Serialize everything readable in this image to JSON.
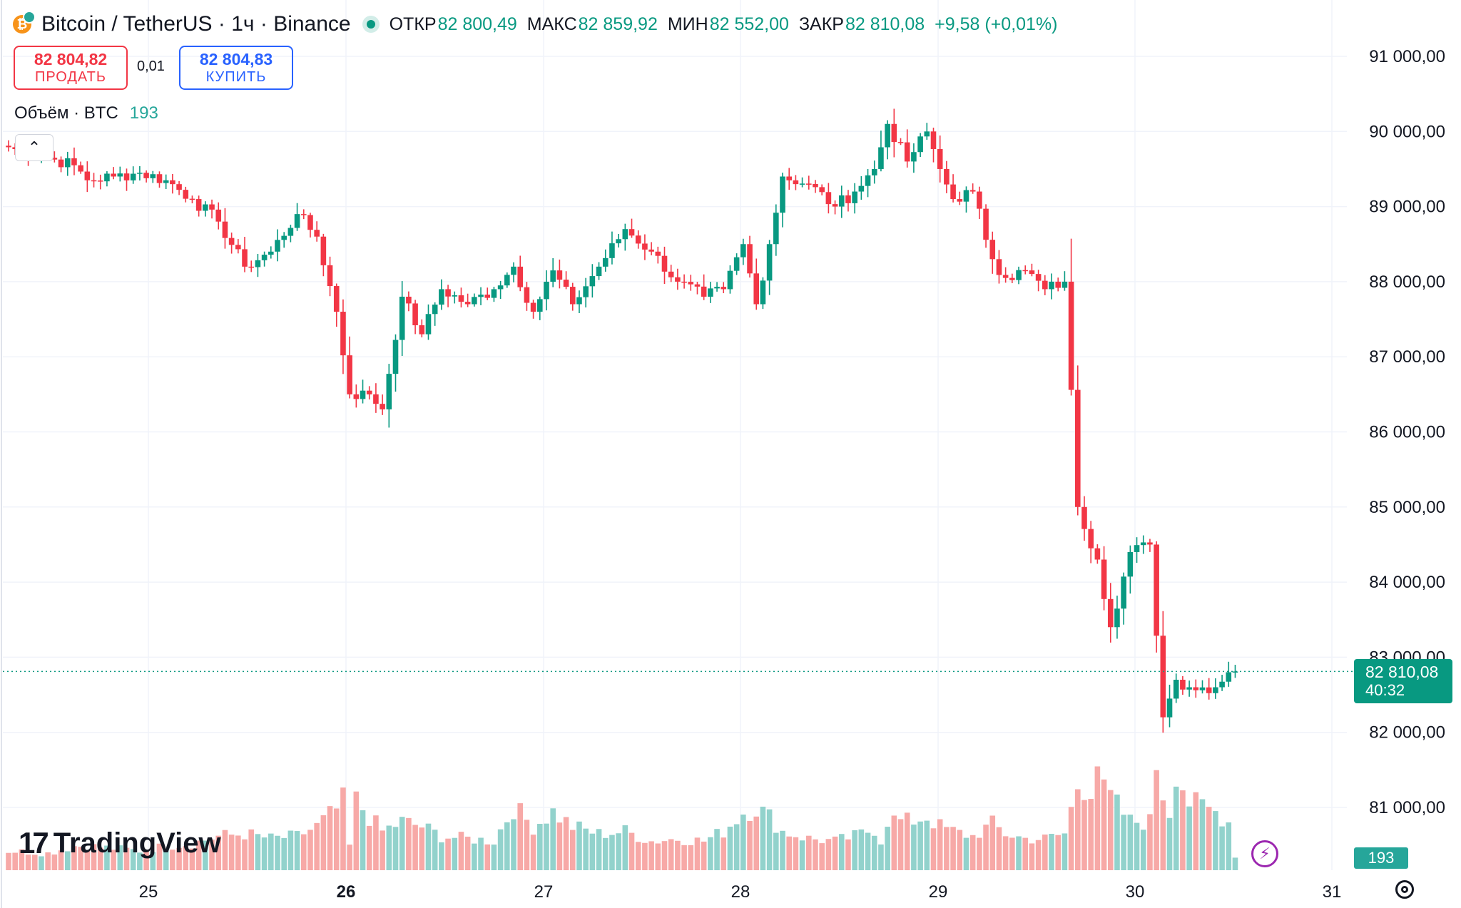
{
  "header": {
    "title": "Bitcoin / TetherUS · 1ч · Binance",
    "open_label": "ОТКР",
    "open_value": "82 800,49",
    "high_label": "МАКС",
    "high_value": "82 859,92",
    "low_label": "МИН",
    "low_value": "82 552,00",
    "close_label": "ЗАКР",
    "close_value": "82 810,08",
    "change": "+9,58 (+0,01%)"
  },
  "trade": {
    "sell_price": "82 804,82",
    "sell_label": "ПРОДАТЬ",
    "spread": "0,01",
    "buy_price": "82 804,83",
    "buy_label": "КУПИТЬ"
  },
  "volume_legend": {
    "label": "Объём · BTC",
    "value": "193"
  },
  "price_tag": {
    "price": "82 810,08",
    "countdown": "40:32"
  },
  "volume_tag": "193",
  "brand": "TradingView",
  "colors": {
    "up": "#089981",
    "down": "#f23645",
    "up_volume": "#92d2cc",
    "down_volume": "#f7a9a7",
    "grid": "#f0f3fa"
  },
  "chart_data": {
    "type": "candlestick",
    "ylim": [
      80300,
      91500
    ],
    "y_ticks": [
      {
        "value": 81000,
        "label": "81 000,00"
      },
      {
        "value": 82000,
        "label": "82 000,00"
      },
      {
        "value": 83000,
        "label": "83 000,00"
      },
      {
        "value": 84000,
        "label": "84 000,00"
      },
      {
        "value": 85000,
        "label": "85 000,00"
      },
      {
        "value": 86000,
        "label": "86 000,00"
      },
      {
        "value": 87000,
        "label": "87 000,00"
      },
      {
        "value": 88000,
        "label": "88 000,00"
      },
      {
        "value": 89000,
        "label": "89 000,00"
      },
      {
        "value": 90000,
        "label": "90 000,00"
      },
      {
        "value": 91000,
        "label": "91 000,00"
      }
    ],
    "x_ticks": [
      {
        "label": "25",
        "bold": false
      },
      {
        "label": "26",
        "bold": true
      },
      {
        "label": "27",
        "bold": false
      },
      {
        "label": "28",
        "bold": false
      },
      {
        "label": "29",
        "bold": false
      },
      {
        "label": "30",
        "bold": false
      },
      {
        "label": "31",
        "bold": false
      }
    ],
    "last_price": 82810.08,
    "anchors": [
      [
        0,
        89790,
        0.8
      ],
      [
        6,
        89650,
        0.7
      ],
      [
        10,
        89550,
        1.0
      ],
      [
        12,
        89350,
        1.0
      ],
      [
        16,
        89400,
        0.9
      ],
      [
        20,
        89450,
        0.8
      ],
      [
        24,
        89350,
        1.0
      ],
      [
        28,
        89100,
        1.1
      ],
      [
        32,
        88800,
        1.4
      ],
      [
        36,
        88200,
        1.5
      ],
      [
        40,
        88400,
        1.3
      ],
      [
        44,
        88900,
        1.4
      ],
      [
        47,
        88600,
        1.8
      ],
      [
        50,
        87600,
        2.5
      ],
      [
        52,
        86500,
        3.2
      ],
      [
        55,
        86500,
        2.2
      ],
      [
        57,
        86300,
        1.6
      ],
      [
        60,
        87800,
        2.0
      ],
      [
        63,
        87300,
        1.8
      ],
      [
        66,
        87900,
        1.4
      ],
      [
        70,
        87700,
        1.3
      ],
      [
        74,
        87900,
        1.2
      ],
      [
        77,
        88200,
        2.6
      ],
      [
        80,
        87600,
        1.8
      ],
      [
        83,
        88150,
        2.4
      ],
      [
        86,
        87700,
        1.8
      ],
      [
        90,
        88200,
        1.5
      ],
      [
        94,
        88700,
        1.6
      ],
      [
        98,
        88400,
        1.2
      ],
      [
        102,
        88000,
        1.3
      ],
      [
        106,
        87800,
        1.2
      ],
      [
        109,
        87900,
        1.6
      ],
      [
        112,
        88500,
        2.4
      ],
      [
        114,
        87700,
        2.6
      ],
      [
        116,
        88500,
        2.2
      ],
      [
        118,
        89400,
        1.6
      ],
      [
        122,
        89300,
        1.3
      ],
      [
        126,
        89000,
        1.2
      ],
      [
        129,
        89200,
        1.4
      ],
      [
        132,
        89500,
        1.7
      ],
      [
        134,
        90100,
        2.1
      ],
      [
        137,
        89600,
        2.0
      ],
      [
        140,
        90000,
        2.2
      ],
      [
        142,
        89500,
        1.8
      ],
      [
        144,
        89100,
        1.6
      ],
      [
        147,
        89200,
        1.4
      ],
      [
        150,
        88300,
        1.9
      ],
      [
        152,
        88050,
        1.5
      ],
      [
        155,
        88150,
        1.3
      ],
      [
        158,
        87900,
        1.3
      ],
      [
        161,
        88000,
        1.5
      ],
      [
        163,
        85000,
        3.5
      ],
      [
        166,
        84300,
        3.4
      ],
      [
        168,
        83400,
        3.0
      ],
      [
        171,
        84400,
        2.0
      ],
      [
        174,
        84500,
        2.0
      ],
      [
        176,
        82200,
        6.8
      ],
      [
        178,
        82700,
        4.2
      ],
      [
        180,
        82600,
        2.8
      ],
      [
        184,
        82600,
        2.4
      ],
      [
        186,
        82800,
        2.0
      ],
      [
        187,
        82810,
        0.6
      ]
    ],
    "volume_spikes": [
      [
        52,
        1.0
      ],
      [
        166,
        4.5
      ],
      [
        176,
        3.2
      ],
      [
        177,
        2.4
      ],
      [
        133,
        1.2
      ]
    ],
    "series": [
      {
        "name": "Объём · BTC",
        "type": "volume",
        "last": 193
      }
    ]
  }
}
